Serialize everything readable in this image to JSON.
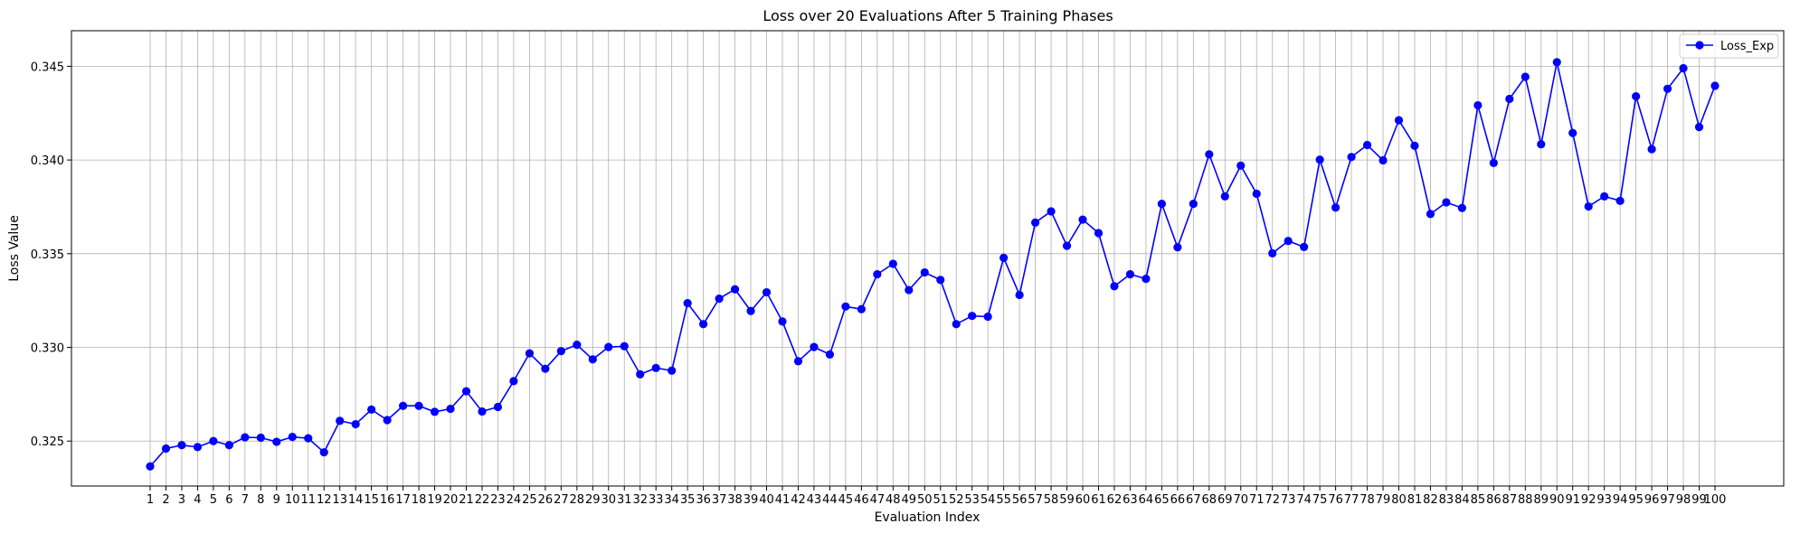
{
  "chart_data": {
    "type": "line",
    "title": "Loss over 20 Evaluations After 5 Training Phases",
    "xlabel": "Evaluation Index",
    "ylabel": "Loss Value",
    "x": [
      1,
      2,
      3,
      4,
      5,
      6,
      7,
      8,
      9,
      10,
      11,
      12,
      13,
      14,
      15,
      16,
      17,
      18,
      19,
      20,
      21,
      22,
      23,
      24,
      25,
      26,
      27,
      28,
      29,
      30,
      31,
      32,
      33,
      34,
      35,
      36,
      37,
      38,
      39,
      40,
      41,
      42,
      43,
      44,
      45,
      46,
      47,
      48,
      49,
      50,
      51,
      52,
      53,
      54,
      55,
      56,
      57,
      58,
      59,
      60,
      61,
      62,
      63,
      64,
      65,
      66,
      67,
      68,
      69,
      70,
      71,
      72,
      73,
      74,
      75,
      76,
      77,
      78,
      79,
      80,
      81,
      82,
      83,
      84,
      85,
      86,
      87,
      88,
      89,
      90,
      91,
      92,
      93,
      94,
      95,
      96,
      97,
      98,
      99,
      100
    ],
    "series": [
      {
        "name": "Loss_Exp",
        "color": "#0000ff",
        "marker": "circle",
        "values": [
          0.32365,
          0.3246,
          0.32478,
          0.32468,
          0.325,
          0.32478,
          0.3252,
          0.32518,
          0.32496,
          0.32522,
          0.32515,
          0.3244,
          0.32608,
          0.3259,
          0.32668,
          0.32612,
          0.32688,
          0.32688,
          0.32656,
          0.32672,
          0.32766,
          0.32658,
          0.32682,
          0.3282,
          0.32968,
          0.32886,
          0.3298,
          0.33014,
          0.32936,
          0.33002,
          0.33006,
          0.32856,
          0.3289,
          0.32876,
          0.33236,
          0.33124,
          0.3326,
          0.3331,
          0.33194,
          0.33294,
          0.33138,
          0.32926,
          0.33002,
          0.32962,
          0.33218,
          0.33204,
          0.3339,
          0.33446,
          0.33306,
          0.334,
          0.3336,
          0.33124,
          0.33168,
          0.33164,
          0.33478,
          0.3328,
          0.33666,
          0.33726,
          0.33542,
          0.33682,
          0.3361,
          0.33326,
          0.3339,
          0.33366,
          0.33766,
          0.33534,
          0.33766,
          0.3403,
          0.33806,
          0.3397,
          0.3382,
          0.33502,
          0.33568,
          0.33536,
          0.34002,
          0.33746,
          0.34016,
          0.3408,
          0.33998,
          0.34212,
          0.34076,
          0.33712,
          0.33774,
          0.33744,
          0.34292,
          0.33984,
          0.34326,
          0.34444,
          0.34084,
          0.34522,
          0.34144,
          0.33752,
          0.33806,
          0.33782,
          0.3434,
          0.34058,
          0.3438,
          0.3449,
          0.34176,
          0.34396
        ]
      }
    ],
    "yticks": [
      "0.325",
      "0.330",
      "0.335",
      "0.340",
      "0.345"
    ],
    "ylim": [
      0.3226,
      0.3469
    ],
    "grid": true,
    "legend_position": "top-right"
  }
}
